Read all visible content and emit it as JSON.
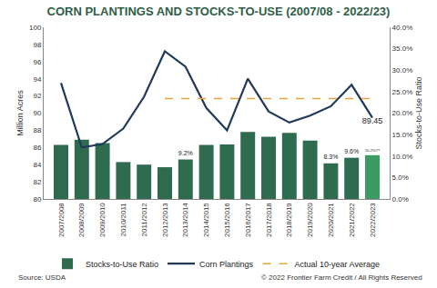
{
  "chart_data": {
    "type": "bar",
    "title": "CORN PLANTINGS AND STOCKS-TO-USE (2007/08 - 2022/23)",
    "y_label": "Million Acres",
    "y2_label": "Stocks-to-Use Ratio",
    "annotations": [
      "Source: USDA",
      "© 2022 Frontier Farm Credit / All Rights Reserved"
    ],
    "categories": [
      "2007/2008",
      "2008/2009",
      "2009/2010",
      "2010/2011",
      "2011/2012",
      "2012/2013",
      "2013/2014",
      "2014/2015",
      "2015/2016",
      "2016/2017",
      "2017/2018",
      "2018/2019",
      "2019/2020",
      "2020/2021",
      "2021/2022",
      "2022/2023"
    ],
    "series": [
      {
        "name": "Stocks-to-Use Ratio",
        "type": "bar",
        "axis": "y2",
        "color": "#2e6b4f",
        "colors": [
          "#2e6b4f",
          "#2e6b4f",
          "#2e6b4f",
          "#2e6b4f",
          "#2e6b4f",
          "#2e6b4f",
          "#2e6b4f",
          "#2e6b4f",
          "#2e6b4f",
          "#2e6b4f",
          "#2e6b4f",
          "#2e6b4f",
          "#2e6b4f",
          "#2e6b4f",
          "#2e6b4f",
          "#3c9a63"
        ],
        "values": [
          12.6,
          13.8,
          13.0,
          8.6,
          8.0,
          7.4,
          9.2,
          12.6,
          12.7,
          15.6,
          14.5,
          15.4,
          13.6,
          8.3,
          9.6,
          10.2
        ],
        "value_labels": [
          null,
          null,
          null,
          null,
          null,
          null,
          "9.2%",
          null,
          null,
          null,
          null,
          null,
          null,
          "8.3%",
          "9.6%",
          "10.2%??"
        ]
      },
      {
        "name": "Corn Plantings",
        "type": "line",
        "color": "#1f3a5a",
        "line_style": "solid",
        "values": [
          93.5,
          86.0,
          86.4,
          88.2,
          91.9,
          97.2,
          95.4,
          90.6,
          88.0,
          94.0,
          90.2,
          88.9,
          89.7,
          90.8,
          93.3,
          89.45
        ],
        "value_labels": [
          null,
          null,
          null,
          null,
          null,
          null,
          null,
          null,
          null,
          null,
          null,
          null,
          null,
          null,
          null,
          "89.45"
        ]
      },
      {
        "name": "Actual 10-year Average",
        "type": "line",
        "color": "#e8a33d",
        "line_style": "dashed",
        "values": [
          null,
          null,
          null,
          null,
          null,
          91.7,
          91.7,
          91.7,
          91.7,
          91.7,
          91.7,
          91.7,
          91.7,
          91.7,
          91.7,
          91.7
        ]
      }
    ],
    "ylim": [
      80,
      100
    ],
    "yticks": [
      80,
      82,
      84,
      86,
      88,
      90,
      92,
      94,
      96,
      98,
      100
    ],
    "y2lim": [
      0,
      40
    ],
    "y2ticks": [
      {
        "value": 0,
        "label": "0.0%"
      },
      {
        "value": 5,
        "label": "5.0%"
      },
      {
        "value": 10,
        "label": "10.0%"
      },
      {
        "value": 15,
        "label": "15.0%"
      },
      {
        "value": 20,
        "label": "20.0%"
      },
      {
        "value": 25,
        "label": "25.0%"
      },
      {
        "value": 30,
        "label": "30.0%"
      },
      {
        "value": 35,
        "label": "35.0%"
      },
      {
        "value": 40,
        "label": "40.0%"
      }
    ],
    "grid": false,
    "legend": "bottom",
    "data_labels": true
  }
}
